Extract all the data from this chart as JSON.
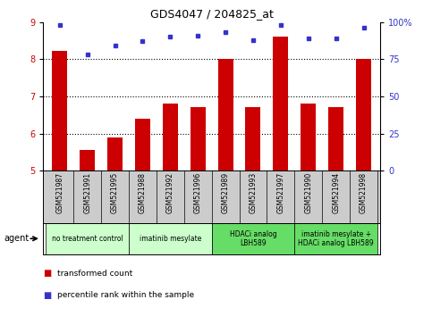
{
  "title": "GDS4047 / 204825_at",
  "samples": [
    "GSM521987",
    "GSM521991",
    "GSM521995",
    "GSM521988",
    "GSM521992",
    "GSM521996",
    "GSM521989",
    "GSM521993",
    "GSM521997",
    "GSM521990",
    "GSM521994",
    "GSM521998"
  ],
  "bar_values": [
    8.22,
    5.55,
    5.9,
    6.4,
    6.8,
    6.7,
    8.0,
    6.7,
    8.6,
    6.8,
    6.7,
    8.0
  ],
  "percentile_values": [
    98,
    78,
    84,
    87,
    90,
    91,
    93,
    88,
    98,
    89,
    89,
    96
  ],
  "ylim_left": [
    5,
    9
  ],
  "ylim_right": [
    0,
    100
  ],
  "yticks_left": [
    5,
    6,
    7,
    8,
    9
  ],
  "yticks_right": [
    0,
    25,
    50,
    75,
    100
  ],
  "bar_color": "#cc0000",
  "dot_color": "#3333cc",
  "grid_color": "#000000",
  "groups": [
    {
      "label": "no treatment control",
      "start": 0,
      "end": 3,
      "color": "#ccffcc"
    },
    {
      "label": "imatinib mesylate",
      "start": 3,
      "end": 6,
      "color": "#ccffcc"
    },
    {
      "label": "HDACi analog\nLBH589",
      "start": 6,
      "end": 9,
      "color": "#66dd66"
    },
    {
      "label": "imatinib mesylate +\nHDACi analog LBH589",
      "start": 9,
      "end": 12,
      "color": "#66dd66"
    }
  ],
  "legend_bar_label": "transformed count",
  "legend_dot_label": "percentile rank within the sample",
  "agent_label": "agent",
  "plot_bg": "#ffffff",
  "tick_area_bg": "#cccccc"
}
